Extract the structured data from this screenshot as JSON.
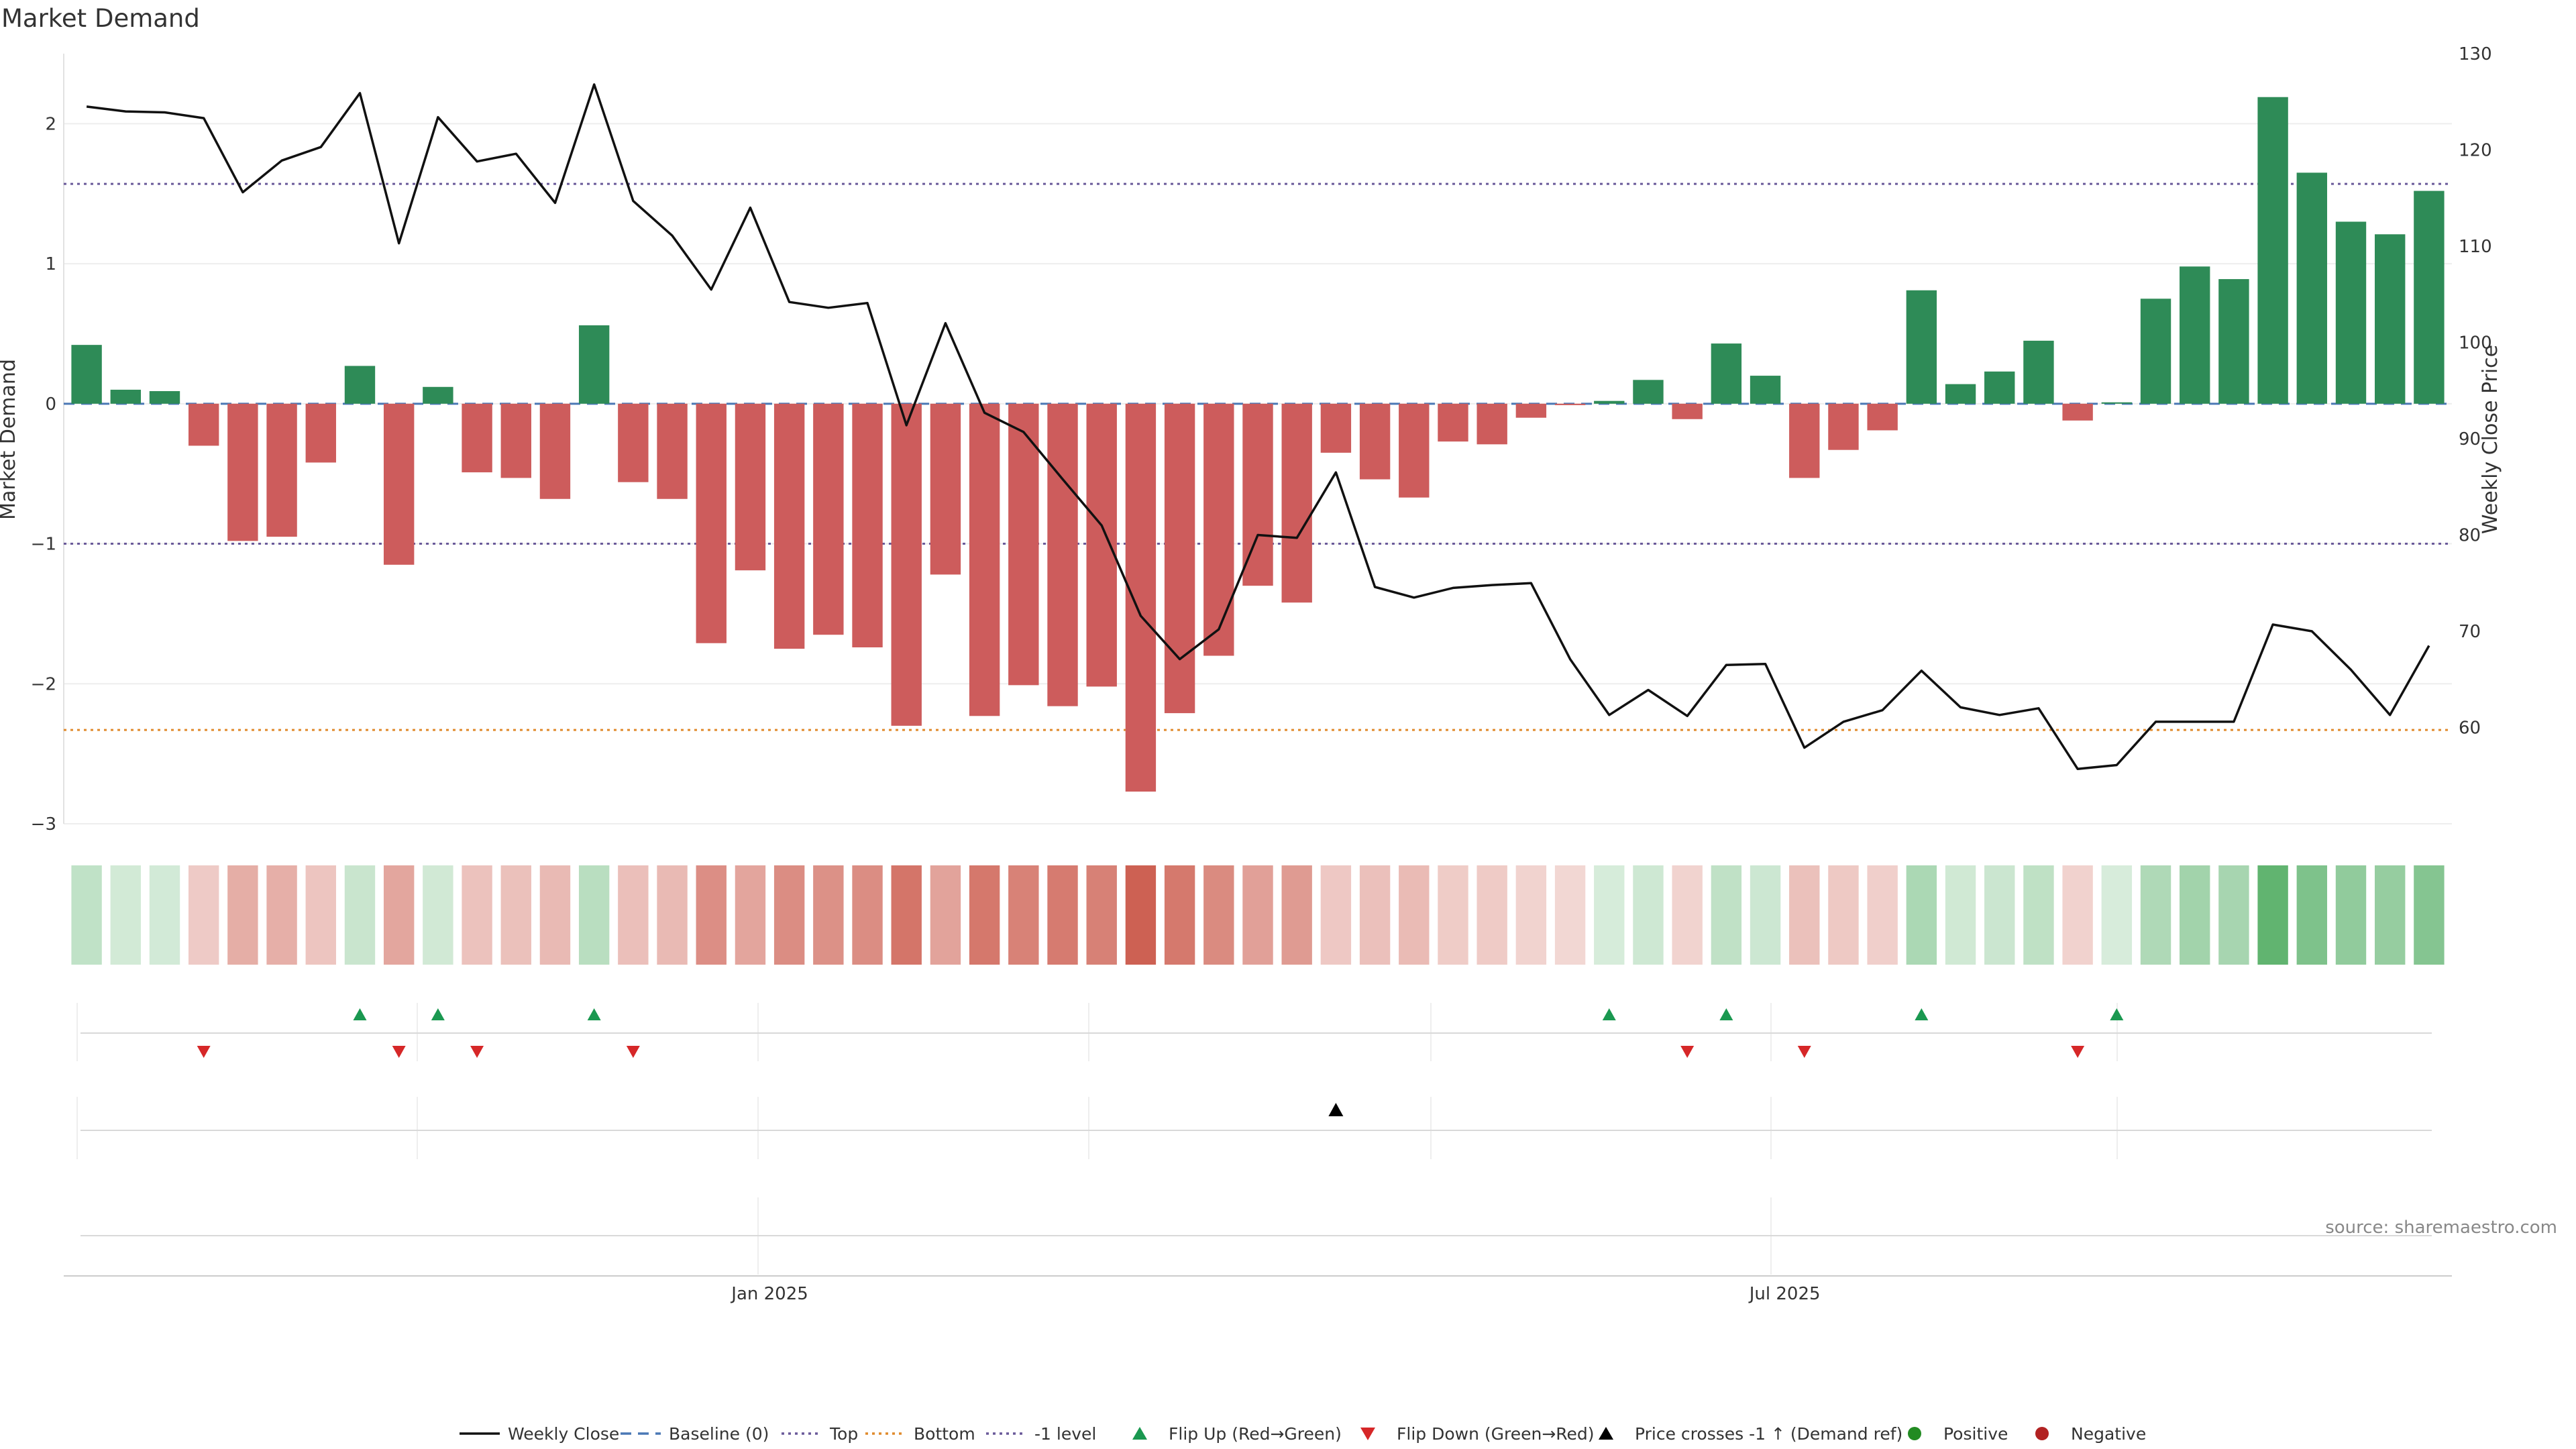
{
  "chart_data": {
    "type": "bar+line",
    "title": "Market Demand",
    "ylabel_left": "Market Demand",
    "ylabel_right": "Weekly Close Price",
    "ylim_left": [
      -3.0,
      2.5
    ],
    "ylim_right": [
      50,
      130
    ],
    "left_ticks": [
      2,
      1,
      0,
      -1,
      -2,
      -3
    ],
    "left_tick_labels": [
      "2",
      "1",
      "0",
      "−1",
      "−2",
      "−3"
    ],
    "right_ticks": [
      130,
      120,
      110,
      100,
      90,
      80,
      70,
      60
    ],
    "x_tick_labels": [
      {
        "label": "Jan 2025",
        "week_index": 17.5
      },
      {
        "label": "Jul 2025",
        "week_index": 43.5
      }
    ],
    "demand": [
      0.42,
      0.1,
      0.09,
      -0.3,
      -0.98,
      -0.95,
      -0.42,
      0.27,
      -1.15,
      0.12,
      -0.49,
      -0.53,
      -0.68,
      0.56,
      -0.56,
      -0.68,
      -1.71,
      -1.19,
      -1.75,
      -1.65,
      -1.74,
      -2.3,
      -1.22,
      -2.23,
      -2.01,
      -2.16,
      -2.02,
      -2.77,
      -2.21,
      -1.8,
      -1.3,
      -1.42,
      -0.35,
      -0.54,
      -0.67,
      -0.27,
      -0.29,
      -0.1,
      -0.01,
      0.02,
      0.17,
      -0.11,
      0.43,
      0.2,
      -0.53,
      -0.33,
      -0.19,
      0.81,
      0.14,
      0.23,
      0.45,
      -0.12,
      0.01,
      0.75,
      0.98,
      0.89,
      2.19,
      1.65,
      1.3,
      1.21,
      1.52
    ],
    "weekly_close": [
      124.5,
      124.0,
      123.9,
      123.3,
      115.6,
      118.9,
      120.3,
      125.9,
      110.3,
      123.4,
      118.8,
      119.6,
      114.5,
      126.8,
      114.7,
      111.1,
      105.5,
      114.0,
      104.2,
      103.6,
      104.1,
      91.4,
      102.0,
      92.7,
      90.7,
      85.8,
      81.0,
      71.6,
      67.1,
      70.2,
      80.0,
      79.7,
      86.5,
      74.6,
      73.5,
      74.5,
      74.8,
      75.0,
      67.1,
      61.3,
      63.9,
      61.2,
      66.5,
      66.6,
      57.9,
      60.6,
      61.8,
      65.9,
      62.1,
      61.3,
      62.0,
      55.7,
      56.1,
      60.6,
      60.6,
      60.6,
      70.7,
      70.0,
      66.0,
      61.3,
      68.5
    ],
    "reference_lines": [
      {
        "name": "Baseline (0)",
        "value": 0,
        "color": "#4a78b5",
        "style": "dashed"
      },
      {
        "name": "Top",
        "value": 1.57,
        "color": "#6a5a9a",
        "style": "dotted"
      },
      {
        "name": "Bottom",
        "value": -2.33,
        "color": "#e08a2c",
        "style": "dotted"
      },
      {
        "name": "-1 level",
        "value": -1.0,
        "color": "#6a5a9a",
        "style": "dotted"
      }
    ],
    "flip_up_weeks": [
      7,
      9,
      13,
      39,
      42,
      47,
      52
    ],
    "flip_down_weeks": [
      3,
      8,
      10,
      14,
      41,
      44,
      51
    ],
    "price_cross_weeks": [
      32
    ],
    "colors": {
      "positive_bar": "#2e8b57",
      "negative_bar": "#cd5c5c",
      "line": "#111111",
      "flip_up": "#1a9850",
      "flip_down": "#d62728",
      "cross": "#000000",
      "positive_dot": "#228b22",
      "negative_dot": "#b22222"
    }
  },
  "source": "source: sharemaestro.com",
  "legend": [
    {
      "label": "Weekly Close",
      "icon": "line-solid"
    },
    {
      "label": "Baseline (0)",
      "icon": "line-dashed"
    },
    {
      "label": "Top",
      "icon": "line-dotted-purple"
    },
    {
      "label": "Bottom",
      "icon": "line-dotted-orange"
    },
    {
      "label": "-1 level",
      "icon": "line-dotted-purple"
    },
    {
      "label": "Flip Up (Red→Green)",
      "icon": "triangle-up-green"
    },
    {
      "label": "Flip Down (Green→Red)",
      "icon": "triangle-down-red"
    },
    {
      "label": "Price crosses -1 ↑ (Demand ref)",
      "icon": "triangle-up-black"
    },
    {
      "label": "Positive",
      "icon": "dot-green"
    },
    {
      "label": "Negative",
      "icon": "dot-red"
    }
  ]
}
